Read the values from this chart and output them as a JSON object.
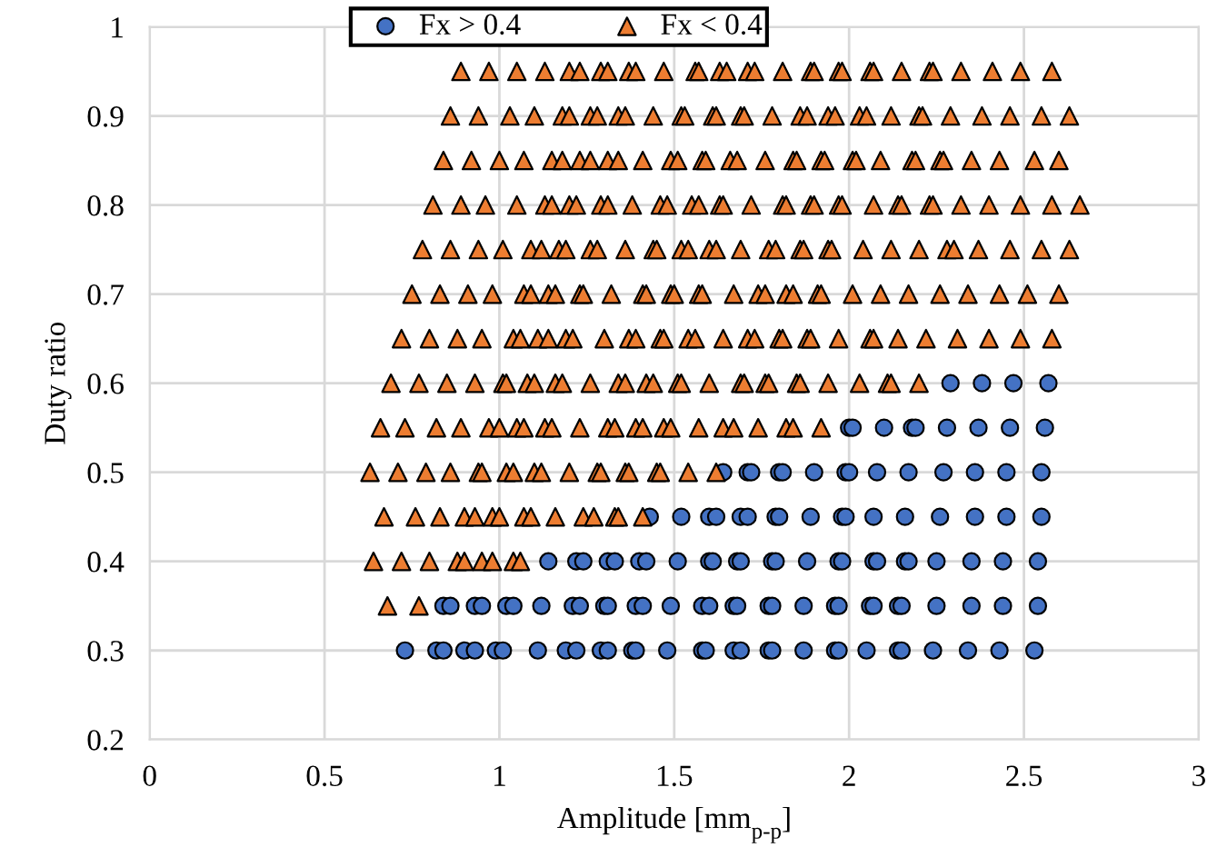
{
  "chart_data": {
    "type": "scatter",
    "xlabel": "Amplitude [mm$_{p-p}$]",
    "ylabel": "Duty ratio",
    "xlim": [
      0,
      3
    ],
    "xticks": [
      0,
      0.5,
      1,
      1.5,
      2,
      2.5,
      3
    ],
    "ylim": [
      0.2,
      1
    ],
    "yticks": [
      0.2,
      0.3,
      0.4,
      0.5,
      0.6,
      0.7,
      0.8,
      0.9,
      1
    ],
    "grid": true,
    "legend": "top",
    "series": [
      {
        "name": "Fx > 0.4",
        "color": "#4472c4",
        "marker": "circle",
        "x": [
          2.29,
          2.38,
          2.47,
          2.57,
          2.0,
          2.01,
          2.1,
          2.18,
          2.19,
          2.28,
          2.37,
          2.46,
          2.56,
          1.64,
          1.71,
          1.72,
          1.8,
          1.81,
          1.9,
          1.99,
          2.0,
          2.08,
          2.17,
          2.27,
          2.36,
          2.45,
          2.55,
          1.43,
          1.52,
          1.6,
          1.62,
          1.69,
          1.71,
          1.79,
          1.8,
          1.89,
          1.98,
          1.99,
          2.07,
          2.16,
          2.26,
          2.36,
          2.45,
          2.55,
          1.14,
          1.22,
          1.24,
          1.31,
          1.33,
          1.4,
          1.42,
          1.51,
          1.6,
          1.61,
          1.68,
          1.69,
          1.78,
          1.79,
          1.88,
          1.97,
          1.98,
          2.07,
          2.08,
          2.16,
          2.17,
          2.25,
          2.35,
          2.44,
          2.54,
          0.84,
          0.86,
          0.93,
          0.95,
          1.02,
          1.04,
          1.12,
          1.21,
          1.23,
          1.3,
          1.31,
          1.39,
          1.41,
          1.49,
          1.58,
          1.6,
          1.67,
          1.68,
          1.77,
          1.78,
          1.87,
          1.96,
          1.97,
          2.06,
          2.07,
          2.14,
          2.15,
          2.25,
          2.35,
          2.44,
          2.54,
          0.73,
          0.82,
          0.84,
          0.9,
          0.93,
          0.99,
          1.01,
          1.11,
          1.19,
          1.22,
          1.29,
          1.31,
          1.38,
          1.39,
          1.48,
          1.58,
          1.59,
          1.67,
          1.69,
          1.77,
          1.78,
          1.87,
          1.96,
          1.97,
          2.05,
          2.14,
          2.15,
          2.24,
          2.34,
          2.43,
          2.53
        ],
        "values": [
          0.6,
          0.6,
          0.6,
          0.6,
          0.55,
          0.55,
          0.55,
          0.55,
          0.55,
          0.55,
          0.55,
          0.55,
          0.55,
          0.5,
          0.5,
          0.5,
          0.5,
          0.5,
          0.5,
          0.5,
          0.5,
          0.5,
          0.5,
          0.5,
          0.5,
          0.5,
          0.5,
          0.45,
          0.45,
          0.45,
          0.45,
          0.45,
          0.45,
          0.45,
          0.45,
          0.45,
          0.45,
          0.45,
          0.45,
          0.45,
          0.45,
          0.45,
          0.45,
          0.45,
          0.4,
          0.4,
          0.4,
          0.4,
          0.4,
          0.4,
          0.4,
          0.4,
          0.4,
          0.4,
          0.4,
          0.4,
          0.4,
          0.4,
          0.4,
          0.4,
          0.4,
          0.4,
          0.4,
          0.4,
          0.4,
          0.4,
          0.4,
          0.4,
          0.4,
          0.35,
          0.35,
          0.35,
          0.35,
          0.35,
          0.35,
          0.35,
          0.35,
          0.35,
          0.35,
          0.35,
          0.35,
          0.35,
          0.35,
          0.35,
          0.35,
          0.35,
          0.35,
          0.35,
          0.35,
          0.35,
          0.35,
          0.35,
          0.35,
          0.35,
          0.35,
          0.35,
          0.35,
          0.35,
          0.35,
          0.35,
          0.3,
          0.3,
          0.3,
          0.3,
          0.3,
          0.3,
          0.3,
          0.3,
          0.3,
          0.3,
          0.3,
          0.3,
          0.3,
          0.3,
          0.3,
          0.3,
          0.3,
          0.3,
          0.3,
          0.3,
          0.3,
          0.3,
          0.3,
          0.3,
          0.3,
          0.3,
          0.3,
          0.3,
          0.3,
          0.3,
          0.3
        ]
      },
      {
        "name": "Fx < 0.4",
        "color": "#ed7d31",
        "marker": "triangle",
        "x": [
          0.89,
          0.97,
          1.05,
          1.13,
          1.2,
          1.23,
          1.29,
          1.31,
          1.37,
          1.39,
          1.47,
          1.56,
          1.57,
          1.63,
          1.65,
          1.71,
          1.73,
          1.81,
          1.89,
          1.9,
          1.97,
          1.98,
          2.06,
          2.07,
          2.15,
          2.23,
          2.24,
          2.32,
          2.41,
          2.49,
          2.58,
          0.86,
          0.94,
          1.03,
          1.1,
          1.18,
          1.2,
          1.26,
          1.28,
          1.34,
          1.36,
          1.44,
          1.52,
          1.53,
          1.61,
          1.62,
          1.69,
          1.7,
          1.78,
          1.86,
          1.88,
          1.94,
          1.96,
          2.03,
          2.05,
          2.12,
          2.2,
          2.21,
          2.29,
          2.38,
          2.46,
          2.55,
          2.63,
          0.84,
          0.92,
          1.0,
          1.07,
          1.15,
          1.18,
          1.23,
          1.26,
          1.31,
          1.34,
          1.41,
          1.49,
          1.51,
          1.58,
          1.59,
          1.66,
          1.68,
          1.76,
          1.84,
          1.85,
          1.92,
          1.93,
          2.01,
          2.02,
          2.09,
          2.18,
          2.19,
          2.26,
          2.27,
          2.35,
          2.43,
          2.53,
          2.6,
          0.81,
          0.89,
          0.96,
          1.05,
          1.13,
          1.15,
          1.2,
          1.22,
          1.29,
          1.31,
          1.38,
          1.46,
          1.48,
          1.55,
          1.57,
          1.63,
          1.64,
          1.72,
          1.81,
          1.82,
          1.89,
          1.9,
          1.97,
          1.98,
          2.07,
          2.14,
          2.15,
          2.23,
          2.24,
          2.32,
          2.4,
          2.49,
          2.58,
          2.66,
          0.78,
          0.86,
          0.94,
          1.01,
          1.09,
          1.12,
          1.17,
          1.19,
          1.26,
          1.28,
          1.36,
          1.44,
          1.45,
          1.52,
          1.54,
          1.6,
          1.62,
          1.69,
          1.77,
          1.79,
          1.86,
          1.87,
          1.94,
          1.95,
          2.04,
          2.12,
          2.2,
          2.28,
          2.3,
          2.37,
          2.46,
          2.55,
          2.63,
          0.75,
          0.83,
          0.91,
          0.98,
          1.07,
          1.09,
          1.14,
          1.16,
          1.23,
          1.24,
          1.32,
          1.41,
          1.42,
          1.49,
          1.5,
          1.57,
          1.58,
          1.67,
          1.74,
          1.76,
          1.82,
          1.84,
          1.91,
          1.92,
          2.01,
          2.09,
          2.17,
          2.26,
          2.34,
          2.43,
          2.51,
          2.6,
          0.72,
          0.8,
          0.88,
          0.95,
          1.04,
          1.06,
          1.11,
          1.14,
          1.19,
          1.21,
          1.3,
          1.37,
          1.39,
          1.46,
          1.47,
          1.54,
          1.56,
          1.64,
          1.71,
          1.73,
          1.8,
          1.81,
          1.88,
          1.89,
          1.97,
          2.06,
          2.07,
          2.14,
          2.22,
          2.31,
          2.4,
          2.49,
          2.58,
          0.69,
          0.77,
          0.85,
          0.93,
          1.01,
          1.02,
          1.08,
          1.1,
          1.16,
          1.18,
          1.26,
          1.34,
          1.36,
          1.42,
          1.44,
          1.51,
          1.52,
          1.6,
          1.69,
          1.7,
          1.76,
          1.77,
          1.85,
          1.86,
          1.94,
          2.03,
          2.11,
          2.12,
          2.2,
          0.66,
          0.73,
          0.82,
          0.89,
          0.97,
          1.0,
          1.05,
          1.07,
          1.13,
          1.15,
          1.23,
          1.31,
          1.33,
          1.39,
          1.41,
          1.47,
          1.49,
          1.57,
          1.64,
          1.67,
          1.74,
          1.82,
          1.84,
          1.92,
          0.63,
          0.71,
          0.79,
          0.86,
          0.94,
          0.95,
          1.02,
          1.04,
          1.1,
          1.12,
          1.2,
          1.28,
          1.29,
          1.36,
          1.37,
          1.45,
          1.46,
          1.54,
          1.62,
          0.67,
          0.76,
          0.83,
          0.9,
          0.93,
          0.98,
          1.0,
          1.07,
          1.09,
          1.16,
          1.24,
          1.27,
          1.33,
          1.34,
          1.41,
          0.64,
          0.72,
          0.8,
          0.88,
          0.9,
          0.95,
          0.98,
          1.04,
          1.06,
          0.68,
          0.77
        ],
        "values": [
          0.95,
          0.95,
          0.95,
          0.95,
          0.95,
          0.95,
          0.95,
          0.95,
          0.95,
          0.95,
          0.95,
          0.95,
          0.95,
          0.95,
          0.95,
          0.95,
          0.95,
          0.95,
          0.95,
          0.95,
          0.95,
          0.95,
          0.95,
          0.95,
          0.95,
          0.95,
          0.95,
          0.95,
          0.95,
          0.95,
          0.95,
          0.9,
          0.9,
          0.9,
          0.9,
          0.9,
          0.9,
          0.9,
          0.9,
          0.9,
          0.9,
          0.9,
          0.9,
          0.9,
          0.9,
          0.9,
          0.9,
          0.9,
          0.9,
          0.9,
          0.9,
          0.9,
          0.9,
          0.9,
          0.9,
          0.9,
          0.9,
          0.9,
          0.9,
          0.9,
          0.9,
          0.9,
          0.9,
          0.85,
          0.85,
          0.85,
          0.85,
          0.85,
          0.85,
          0.85,
          0.85,
          0.85,
          0.85,
          0.85,
          0.85,
          0.85,
          0.85,
          0.85,
          0.85,
          0.85,
          0.85,
          0.85,
          0.85,
          0.85,
          0.85,
          0.85,
          0.85,
          0.85,
          0.85,
          0.85,
          0.85,
          0.85,
          0.85,
          0.85,
          0.85,
          0.85,
          0.8,
          0.8,
          0.8,
          0.8,
          0.8,
          0.8,
          0.8,
          0.8,
          0.8,
          0.8,
          0.8,
          0.8,
          0.8,
          0.8,
          0.8,
          0.8,
          0.8,
          0.8,
          0.8,
          0.8,
          0.8,
          0.8,
          0.8,
          0.8,
          0.8,
          0.8,
          0.8,
          0.8,
          0.8,
          0.8,
          0.8,
          0.8,
          0.8,
          0.8,
          0.75,
          0.75,
          0.75,
          0.75,
          0.75,
          0.75,
          0.75,
          0.75,
          0.75,
          0.75,
          0.75,
          0.75,
          0.75,
          0.75,
          0.75,
          0.75,
          0.75,
          0.75,
          0.75,
          0.75,
          0.75,
          0.75,
          0.75,
          0.75,
          0.75,
          0.75,
          0.75,
          0.75,
          0.75,
          0.75,
          0.75,
          0.75,
          0.75,
          0.7,
          0.7,
          0.7,
          0.7,
          0.7,
          0.7,
          0.7,
          0.7,
          0.7,
          0.7,
          0.7,
          0.7,
          0.7,
          0.7,
          0.7,
          0.7,
          0.7,
          0.7,
          0.7,
          0.7,
          0.7,
          0.7,
          0.7,
          0.7,
          0.7,
          0.7,
          0.7,
          0.7,
          0.7,
          0.7,
          0.7,
          0.7,
          0.65,
          0.65,
          0.65,
          0.65,
          0.65,
          0.65,
          0.65,
          0.65,
          0.65,
          0.65,
          0.65,
          0.65,
          0.65,
          0.65,
          0.65,
          0.65,
          0.65,
          0.65,
          0.65,
          0.65,
          0.65,
          0.65,
          0.65,
          0.65,
          0.65,
          0.65,
          0.65,
          0.65,
          0.65,
          0.65,
          0.65,
          0.65,
          0.65,
          0.6,
          0.6,
          0.6,
          0.6,
          0.6,
          0.6,
          0.6,
          0.6,
          0.6,
          0.6,
          0.6,
          0.6,
          0.6,
          0.6,
          0.6,
          0.6,
          0.6,
          0.6,
          0.6,
          0.6,
          0.6,
          0.6,
          0.6,
          0.6,
          0.6,
          0.6,
          0.6,
          0.6,
          0.6,
          0.55,
          0.55,
          0.55,
          0.55,
          0.55,
          0.55,
          0.55,
          0.55,
          0.55,
          0.55,
          0.55,
          0.55,
          0.55,
          0.55,
          0.55,
          0.55,
          0.55,
          0.55,
          0.55,
          0.55,
          0.55,
          0.55,
          0.55,
          0.55,
          0.5,
          0.5,
          0.5,
          0.5,
          0.5,
          0.5,
          0.5,
          0.5,
          0.5,
          0.5,
          0.5,
          0.5,
          0.5,
          0.5,
          0.5,
          0.5,
          0.5,
          0.5,
          0.5,
          0.45,
          0.45,
          0.45,
          0.45,
          0.45,
          0.45,
          0.45,
          0.45,
          0.45,
          0.45,
          0.45,
          0.45,
          0.45,
          0.45,
          0.45,
          0.4,
          0.4,
          0.4,
          0.4,
          0.4,
          0.4,
          0.4,
          0.4,
          0.4,
          0.35,
          0.35
        ]
      }
    ]
  }
}
